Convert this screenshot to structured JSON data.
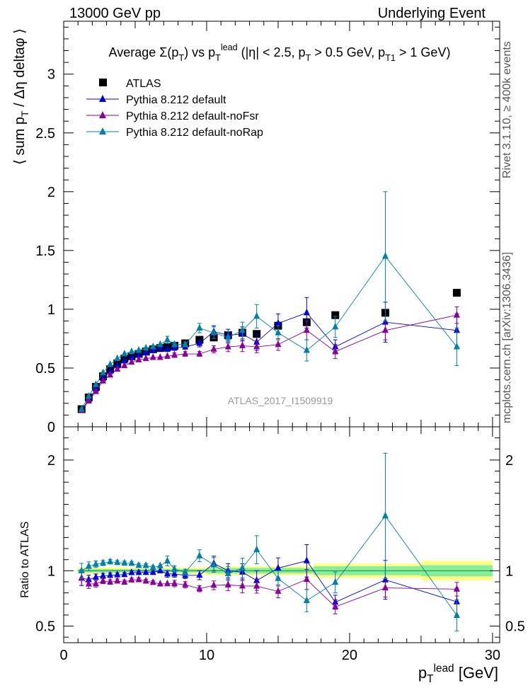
{
  "header": {
    "left": "13000 GeV pp",
    "right": "Underlying Event"
  },
  "side": {
    "top": "Rivet 3.1.10, ≥ 400k events",
    "bottom": "mcplots.cern.ch [arXiv:1306.3436]"
  },
  "chart_data": {
    "type": "scatter",
    "title": "Average Σ(p_T) vs p_T^lead (|η| < 2.5, p_T > 0.5 GeV, p_T1 > 1 GeV)",
    "analysis_label": "ATLAS_2017_I1509919",
    "xlabel": "p_T^lead [GeV]",
    "ylabel": "⟨ sum p_T / Δη deltaφ ⟩",
    "ratio_ylabel": "Ratio to ATLAS",
    "xlim": [
      0,
      30.5
    ],
    "ylim": [
      0,
      3.45
    ],
    "ratio_ylim": [
      0.35,
      2.3
    ],
    "x_ticks": [
      0,
      10,
      20,
      30
    ],
    "y_ticks": [
      0,
      0.5,
      1,
      1.5,
      2,
      2.5,
      3
    ],
    "ratio_ticks": [
      0.5,
      1,
      2
    ],
    "legend": "top-left",
    "x": [
      1.25,
      1.75,
      2.25,
      2.75,
      3.25,
      3.75,
      4.25,
      4.75,
      5.25,
      5.75,
      6.25,
      6.75,
      7.25,
      7.75,
      8.5,
      9.5,
      10.5,
      11.5,
      12.5,
      13.5,
      15,
      17,
      19,
      22.5,
      27.5
    ],
    "band": [
      {
        "x0": 1.0,
        "x1": 10.0,
        "inner": 0.015,
        "outer": 0.03
      },
      {
        "x0": 10.0,
        "x1": 17.5,
        "inner": 0.025,
        "outer": 0.04
      },
      {
        "x0": 17.5,
        "x1": 25.0,
        "inner": 0.04,
        "outer": 0.065
      },
      {
        "x0": 25.0,
        "x1": 30.0,
        "inner": 0.05,
        "outer": 0.09
      }
    ],
    "series": [
      {
        "name": "ATLAS",
        "color": "#000000",
        "marker": "square",
        "y": [
          0.15,
          0.25,
          0.34,
          0.43,
          0.49,
          0.54,
          0.58,
          0.6,
          0.62,
          0.64,
          0.66,
          0.67,
          0.68,
          0.69,
          0.71,
          0.74,
          0.76,
          0.78,
          0.8,
          0.79,
          0.86,
          0.89,
          0.95,
          0.97,
          1.14
        ]
      },
      {
        "name": "Pythia 8.212 default",
        "color": "#0000dd",
        "marker": "triangle",
        "y": [
          0.14,
          0.23,
          0.32,
          0.41,
          0.47,
          0.52,
          0.56,
          0.59,
          0.61,
          0.63,
          0.65,
          0.67,
          0.66,
          0.67,
          0.68,
          0.71,
          0.81,
          0.78,
          0.79,
          0.72,
          0.88,
          0.97,
          0.68,
          0.89,
          0.82
        ],
        "err": [
          0.01,
          0.01,
          0.01,
          0.01,
          0.01,
          0.01,
          0.01,
          0.01,
          0.01,
          0.01,
          0.01,
          0.01,
          0.02,
          0.02,
          0.02,
          0.03,
          0.05,
          0.05,
          0.06,
          0.07,
          0.08,
          0.13,
          0.06,
          0.17,
          0.14
        ]
      },
      {
        "name": "Pythia 8.212 default-noFsr",
        "color": "#880099",
        "marker": "triangle",
        "y": [
          0.14,
          0.22,
          0.3,
          0.39,
          0.44,
          0.49,
          0.52,
          0.55,
          0.57,
          0.58,
          0.59,
          0.59,
          0.6,
          0.61,
          0.62,
          0.62,
          0.66,
          0.68,
          0.69,
          0.68,
          0.7,
          0.82,
          0.64,
          0.82,
          0.95
        ],
        "err": [
          0.01,
          0.01,
          0.01,
          0.01,
          0.01,
          0.01,
          0.01,
          0.01,
          0.01,
          0.01,
          0.01,
          0.01,
          0.01,
          0.02,
          0.02,
          0.02,
          0.03,
          0.04,
          0.05,
          0.05,
          0.05,
          0.08,
          0.06,
          0.08,
          0.07
        ]
      },
      {
        "name": "Pythia 8.212 default-noRap",
        "color": "#0080a8",
        "marker": "triangle",
        "y": [
          0.15,
          0.26,
          0.36,
          0.46,
          0.53,
          0.58,
          0.62,
          0.64,
          0.65,
          0.67,
          0.68,
          0.7,
          0.74,
          0.7,
          0.7,
          0.84,
          0.8,
          0.76,
          0.82,
          0.94,
          0.8,
          0.65,
          0.85,
          1.45,
          0.68
        ],
        "err": [
          0.01,
          0.01,
          0.01,
          0.01,
          0.01,
          0.01,
          0.01,
          0.01,
          0.01,
          0.01,
          0.01,
          0.01,
          0.03,
          0.02,
          0.02,
          0.04,
          0.05,
          0.05,
          0.07,
          0.1,
          0.06,
          0.09,
          0.09,
          0.55,
          0.16
        ]
      }
    ]
  }
}
